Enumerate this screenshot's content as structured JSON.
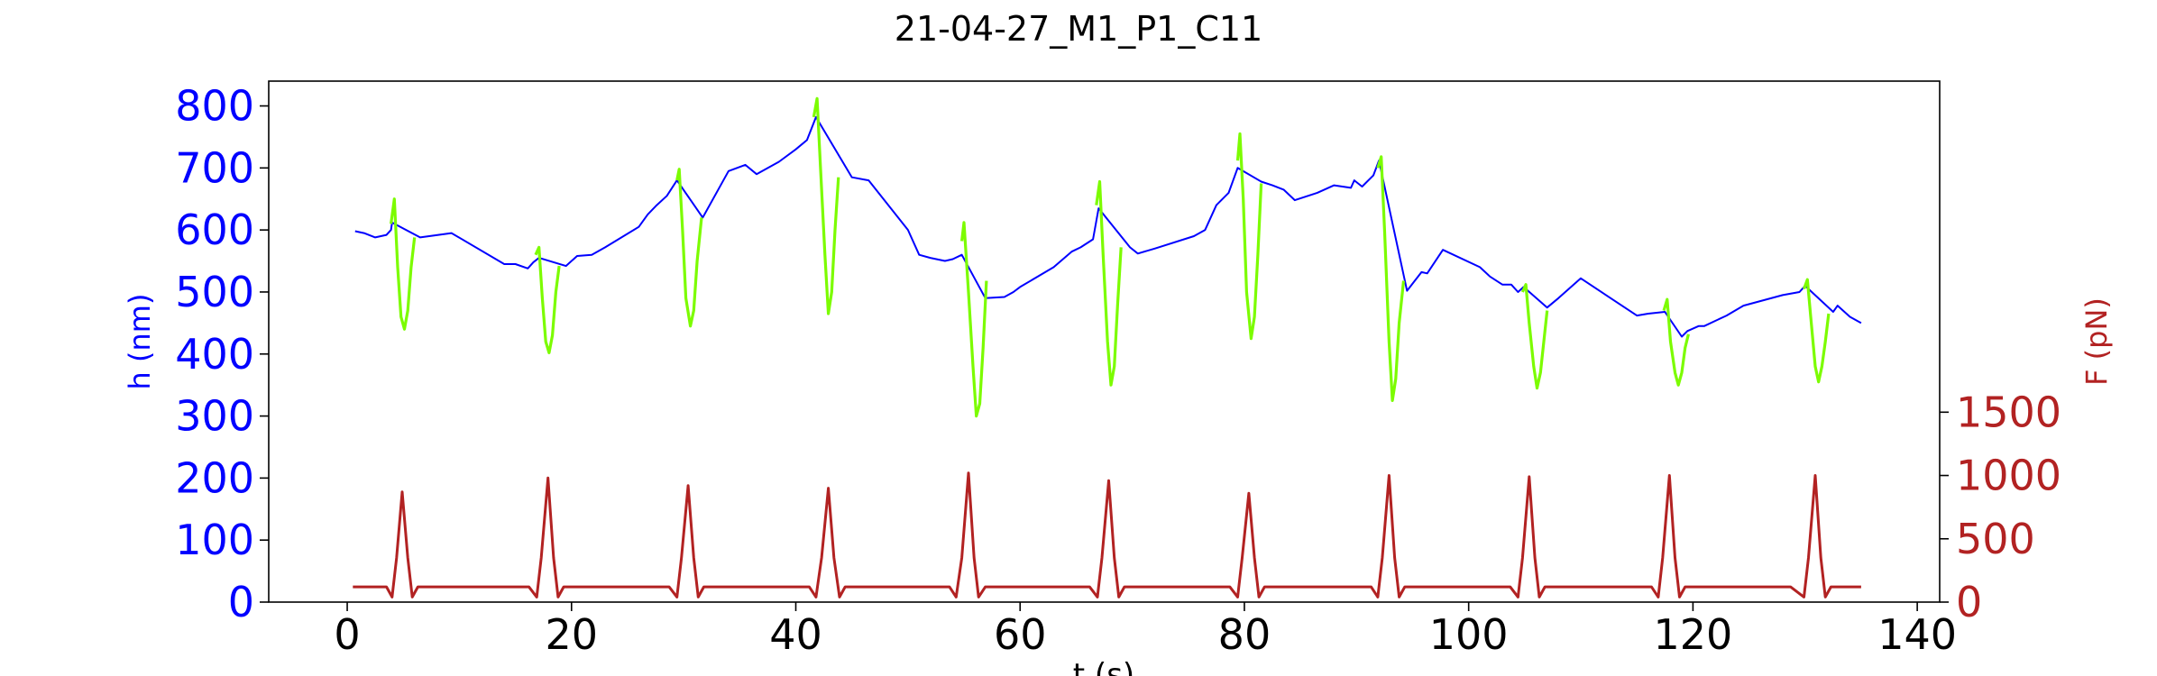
{
  "chart_data": {
    "type": "line",
    "title": "21-04-27_M1_P1_C11",
    "xlabel": "t (s)",
    "ylabel_left": "h (nm)",
    "ylabel_right": "F (pN)",
    "xlim": [
      -7,
      142
    ],
    "ylim_left": [
      0,
      840
    ],
    "ylim_right": [
      0,
      4115
    ],
    "x_ticks": [
      0,
      20,
      40,
      60,
      80,
      100,
      120,
      140
    ],
    "x_tick_labels": [
      "0",
      "20",
      "40",
      "60",
      "80",
      "100",
      "120",
      "140"
    ],
    "y_left_ticks": [
      0,
      100,
      200,
      300,
      400,
      500,
      600,
      700,
      800
    ],
    "y_left_tick_labels": [
      "0",
      "100",
      "200",
      "300",
      "400",
      "500",
      "600",
      "700",
      "800"
    ],
    "y_right_ticks": [
      0,
      500,
      1000,
      1500
    ],
    "y_right_tick_labels": [
      "0",
      "500",
      "1000",
      "1500"
    ],
    "grid": false,
    "legend": "none",
    "colors": {
      "h_baseline": "#0000ff",
      "h_compression": "#7cfc00",
      "force": "#b22222",
      "left_axis_text": "#0000ff",
      "right_axis_text": "#b22222",
      "text": "#000000"
    },
    "series": [
      {
        "axis": "left",
        "x": [
          0.7,
          1.5,
          2.5,
          3.5,
          3.9,
          4.0,
          6.5,
          9.3,
          14.0,
          15.0,
          16.1,
          16.6,
          17.1,
          19.5,
          20.5,
          21.8,
          23.0,
          26.0,
          26.8,
          27.6,
          28.5,
          29.4,
          31.7,
          34.0,
          35.5,
          36.5,
          38.5,
          40.0,
          41.0,
          41.8,
          45.0,
          46.5,
          50.0,
          51.0,
          52.0,
          53.3,
          54.0,
          54.8,
          56.9,
          58.6,
          59.4,
          60.0,
          63.0,
          64.6,
          65.4,
          66.5,
          67.0,
          69.8,
          70.5,
          72.0,
          75.5,
          76.5,
          77.5,
          78.6,
          79.4,
          81.5,
          82.5,
          83.5,
          84.5,
          86.5,
          88.0,
          89.5,
          89.8,
          90.5,
          91.5,
          92.0,
          94.5,
          95.8,
          96.3,
          97.7,
          101.0,
          101.9,
          103.0,
          103.8,
          104.4,
          104.9,
          107.0,
          108.0,
          110.0,
          115.0,
          116.0,
          117.5,
          119.0,
          119.5,
          120.5,
          121.0,
          123.0,
          124.5,
          128.0,
          129.5,
          130.0,
          132.5,
          132.9,
          134.0,
          135.0
        ],
        "y": [
          598,
          595,
          588,
          592,
          600,
          612,
          588,
          595,
          545,
          545,
          538,
          548,
          555,
          542,
          558,
          560,
          572,
          605,
          625,
          640,
          655,
          680,
          620,
          695,
          705,
          690,
          710,
          730,
          745,
          782,
          685,
          680,
          600,
          560,
          555,
          550,
          553,
          560,
          490,
          492,
          500,
          508,
          540,
          565,
          572,
          585,
          635,
          572,
          562,
          570,
          590,
          600,
          640,
          660,
          700,
          678,
          672,
          665,
          648,
          660,
          672,
          668,
          680,
          670,
          688,
          712,
          502,
          532,
          530,
          568,
          540,
          525,
          512,
          512,
          500,
          508,
          475,
          490,
          522,
          462,
          465,
          468,
          428,
          437,
          445,
          445,
          462,
          478,
          495,
          500,
          510,
          468,
          478,
          460,
          450
        ]
      },
      {
        "axis": "left",
        "x": [
          3.9,
          4.2,
          4.5,
          4.8,
          5.1,
          5.4,
          5.7,
          6.0
        ],
        "y": [
          610,
          650,
          540,
          460,
          440,
          470,
          540,
          588
        ]
      },
      {
        "axis": "left",
        "x": [
          16.8,
          17.1,
          17.4,
          17.7,
          18.0,
          18.3,
          18.6,
          18.9
        ],
        "y": [
          560,
          572,
          490,
          420,
          402,
          430,
          500,
          542
        ]
      },
      {
        "axis": "left",
        "x": [
          29.4,
          29.6,
          29.9,
          30.2,
          30.6,
          30.9,
          31.2,
          31.6
        ],
        "y": [
          680,
          698,
          600,
          490,
          445,
          470,
          550,
          620
        ]
      },
      {
        "axis": "left",
        "x": [
          41.6,
          41.9,
          42.2,
          42.6,
          42.9,
          43.2,
          43.5,
          43.8
        ],
        "y": [
          782,
          812,
          700,
          560,
          465,
          500,
          600,
          685
        ]
      },
      {
        "axis": "left",
        "x": [
          54.8,
          55.0,
          55.4,
          55.8,
          56.1,
          56.4,
          56.7,
          57.0
        ],
        "y": [
          582,
          612,
          500,
          380,
          300,
          320,
          410,
          518
        ]
      },
      {
        "axis": "left",
        "x": [
          66.8,
          67.1,
          67.4,
          67.8,
          68.1,
          68.4,
          68.7,
          69.0
        ],
        "y": [
          640,
          678,
          560,
          420,
          350,
          380,
          480,
          572
        ]
      },
      {
        "axis": "left",
        "x": [
          79.4,
          79.6,
          79.9,
          80.2,
          80.6,
          80.9,
          81.2,
          81.5
        ],
        "y": [
          712,
          755,
          650,
          500,
          425,
          460,
          560,
          675
        ]
      },
      {
        "axis": "left",
        "x": [
          91.9,
          92.2,
          92.5,
          92.9,
          93.2,
          93.5,
          93.8,
          94.2
        ],
        "y": [
          700,
          718,
          600,
          420,
          325,
          360,
          450,
          518
        ]
      },
      {
        "axis": "left",
        "x": [
          104.8,
          105.1,
          105.4,
          105.8,
          106.1,
          106.4,
          106.7,
          107.0
        ],
        "y": [
          500,
          512,
          450,
          380,
          345,
          370,
          420,
          470
        ]
      },
      {
        "axis": "left",
        "x": [
          117.4,
          117.7,
          118.0,
          118.4,
          118.7,
          119.0,
          119.3,
          119.6
        ],
        "y": [
          470,
          488,
          420,
          370,
          350,
          370,
          410,
          432
        ]
      },
      {
        "axis": "left",
        "x": [
          129.9,
          130.2,
          130.5,
          130.9,
          131.2,
          131.5,
          131.8,
          132.1
        ],
        "y": [
          505,
          520,
          460,
          380,
          355,
          380,
          420,
          465
        ]
      },
      {
        "axis": "right",
        "x": [
          0.5,
          3.5,
          4.0,
          4.4,
          4.9,
          5.4,
          5.8,
          6.3,
          16.2,
          16.9,
          17.3,
          17.9,
          18.4,
          18.8,
          19.3,
          28.7,
          29.4,
          29.8,
          30.4,
          30.9,
          31.3,
          31.8,
          41.2,
          41.8,
          42.3,
          42.9,
          43.4,
          43.9,
          44.4,
          53.7,
          54.3,
          54.8,
          55.4,
          55.9,
          56.3,
          56.9,
          66.2,
          66.9,
          67.3,
          67.9,
          68.4,
          68.8,
          69.3,
          78.7,
          79.4,
          79.8,
          80.4,
          80.9,
          81.3,
          81.8,
          91.3,
          91.9,
          92.3,
          92.9,
          93.4,
          93.8,
          94.3,
          103.7,
          104.4,
          104.8,
          105.4,
          105.9,
          106.3,
          106.8,
          116.3,
          116.9,
          117.3,
          117.9,
          118.4,
          118.8,
          119.3,
          128.7,
          129.9,
          130.3,
          130.9,
          131.4,
          131.8,
          132.3,
          135.0
        ],
        "y": [
          120,
          120,
          40,
          350,
          870,
          350,
          40,
          120,
          120,
          40,
          350,
          980,
          350,
          40,
          120,
          120,
          40,
          350,
          920,
          350,
          40,
          120,
          120,
          40,
          350,
          900,
          350,
          40,
          120,
          120,
          40,
          350,
          1020,
          350,
          40,
          120,
          120,
          40,
          350,
          960,
          350,
          40,
          120,
          120,
          40,
          350,
          860,
          350,
          40,
          120,
          120,
          40,
          350,
          1000,
          350,
          40,
          120,
          120,
          40,
          350,
          990,
          350,
          40,
          120,
          120,
          40,
          350,
          1000,
          350,
          40,
          120,
          120,
          40,
          350,
          1000,
          350,
          40,
          120,
          120
        ]
      }
    ]
  }
}
